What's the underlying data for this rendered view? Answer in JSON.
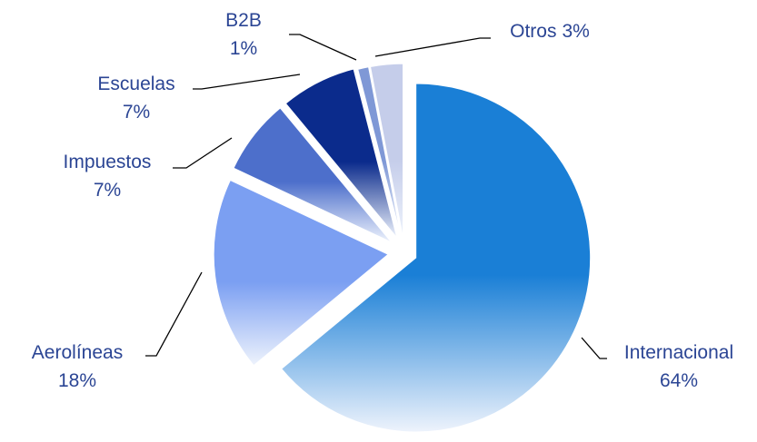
{
  "chart_data": {
    "type": "pie",
    "categories": [
      "Internacional",
      "Aerolíneas",
      "Impuestos",
      "Escuelas",
      "B2B",
      "Otros"
    ],
    "values": [
      64,
      18,
      7,
      7,
      1,
      3
    ],
    "value_labels": [
      "64%",
      "18%",
      "7%",
      "7%",
      "1%",
      "3%"
    ],
    "colors": [
      "#1a7fd6",
      "#7b9ff2",
      "#4d6fcb",
      "#0b2b8c",
      "#7f98d6",
      "#c5cdea"
    ]
  }
}
